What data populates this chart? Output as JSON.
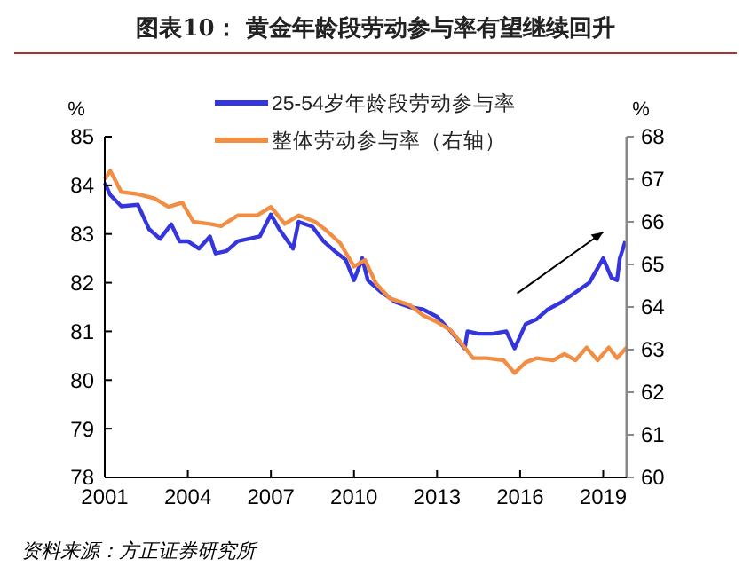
{
  "chart_data": {
    "type": "line",
    "title": "图表10：  黄金年龄段劳动参与率有望继续回升",
    "ylabel": "%",
    "y2label": "%",
    "annotations": [
      "资料来源：方正证券研究所"
    ],
    "xlim": [
      2001,
      2019.85
    ],
    "xticks": [
      2001,
      2004,
      2007,
      2010,
      2013,
      2016,
      2019
    ],
    "ylim": [
      78,
      85
    ],
    "yticks": [
      78,
      79,
      80,
      81,
      82,
      83,
      84,
      85
    ],
    "y2lim": [
      60,
      68
    ],
    "y2ticks": [
      60,
      61,
      62,
      63,
      64,
      65,
      66,
      67,
      68
    ],
    "legend": "top",
    "grid": false,
    "series": [
      {
        "name": "25-54岁年龄段劳动参与率",
        "color": "#3535dd",
        "x": [
          2001,
          2001.2,
          2001.6,
          2002.2,
          2002.6,
          2003,
          2003.4,
          2003.7,
          2004,
          2004.4,
          2004.8,
          2005,
          2005.4,
          2005.8,
          2006.2,
          2006.6,
          2007,
          2007.3,
          2007.8,
          2008,
          2008.5,
          2008.9,
          2009.3,
          2009.7,
          2010,
          2010.3,
          2010.5,
          2011,
          2011.5,
          2012,
          2012.5,
          2013,
          2013.5,
          2014,
          2014.1,
          2014.5,
          2015,
          2015.5,
          2015.8,
          2016.2,
          2016.6,
          2017,
          2017.5,
          2018,
          2018.5,
          2019,
          2019.3,
          2019.5,
          2019.6,
          2019.8
        ],
        "values": [
          84.05,
          83.8,
          83.57,
          83.6,
          83.1,
          82.9,
          83.2,
          82.85,
          82.85,
          82.7,
          82.95,
          82.6,
          82.65,
          82.85,
          82.9,
          82.95,
          83.4,
          83.1,
          82.7,
          83.25,
          83.15,
          82.85,
          82.65,
          82.47,
          82.05,
          82.5,
          82.05,
          81.8,
          81.6,
          81.5,
          81.45,
          81.3,
          81.0,
          80.65,
          81.0,
          80.95,
          80.95,
          81.0,
          80.65,
          81.15,
          81.25,
          81.45,
          81.6,
          81.8,
          82.0,
          82.5,
          82.1,
          82.05,
          82.5,
          82.85
        ]
      },
      {
        "name": "整体劳动参与率（右轴）",
        "color": "#f28e44",
        "axis": "y2",
        "x": [
          2001,
          2001.2,
          2001.6,
          2002.2,
          2002.8,
          2003.3,
          2003.8,
          2004.2,
          2004.8,
          2005.2,
          2005.8,
          2006.5,
          2007,
          2007.5,
          2008,
          2008.6,
          2009,
          2009.5,
          2010,
          2010.4,
          2010.8,
          2011.3,
          2012,
          2012.5,
          2013,
          2013.5,
          2014,
          2014.3,
          2014.8,
          2015.4,
          2015.8,
          2016.2,
          2016.6,
          2017.2,
          2017.6,
          2018,
          2018.4,
          2018.8,
          2019.2,
          2019.5,
          2019.85
        ],
        "values": [
          67.0,
          67.2,
          66.7,
          66.65,
          66.55,
          66.35,
          66.45,
          66.0,
          65.95,
          65.9,
          66.15,
          66.15,
          66.35,
          65.95,
          66.15,
          66.0,
          65.8,
          65.5,
          64.95,
          65.1,
          64.55,
          64.2,
          64.05,
          63.8,
          63.65,
          63.45,
          63.05,
          62.8,
          62.8,
          62.75,
          62.45,
          62.7,
          62.8,
          62.75,
          62.9,
          62.75,
          63.05,
          62.75,
          63.05,
          62.8,
          63.05
        ]
      }
    ]
  }
}
